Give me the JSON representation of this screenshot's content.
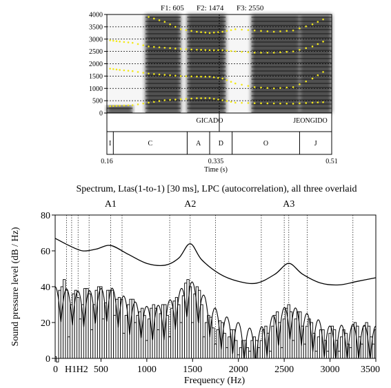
{
  "chart_data": [
    {
      "type": "spectrogram",
      "formant_labels": [
        "F1: 605",
        "F2: 1474",
        "F3: 2550"
      ],
      "y_ticks": [
        "0",
        "500",
        "1000",
        "1500",
        "2000",
        "2500",
        "3000",
        "3500",
        "4000"
      ],
      "ylim": [
        0,
        4000
      ],
      "xlim": [
        0.16,
        0.51
      ],
      "cursor_time": 0.335,
      "x_tick_labels": [
        "0.16",
        "0.335",
        "0.51"
      ],
      "xlabel": "Time (s)",
      "word_tier": [
        {
          "label": "GICADO",
          "start": 0.16,
          "end": 0.335
        },
        {
          "label": "JEONGIDO",
          "start": 0.335,
          "end": 0.51
        }
      ],
      "segment_tier": [
        {
          "label": "I",
          "start": 0.16,
          "end": 0.17
        },
        {
          "label": "C",
          "start": 0.17,
          "end": 0.285
        },
        {
          "label": "A",
          "start": 0.285,
          "end": 0.32
        },
        {
          "label": "D",
          "start": 0.32,
          "end": 0.355
        },
        {
          "label": "O",
          "start": 0.355,
          "end": 0.46
        },
        {
          "label": "J",
          "start": 0.46,
          "end": 0.51
        }
      ],
      "dark_bands": [
        {
          "start": 0.16,
          "end": 0.2,
          "lo": 0,
          "hi": 300
        },
        {
          "start": 0.22,
          "end": 0.275,
          "lo": 0,
          "hi": 4000
        },
        {
          "start": 0.285,
          "end": 0.345,
          "lo": 0,
          "hi": 4000
        },
        {
          "start": 0.385,
          "end": 0.46,
          "lo": 0,
          "hi": 4000
        },
        {
          "start": 0.46,
          "end": 0.51,
          "lo": 0,
          "hi": 4000
        }
      ],
      "formant_tracks": [
        {
          "name": "F1",
          "points": [
            [
              0.165,
              280
            ],
            [
              0.18,
              300
            ],
            [
              0.2,
              320
            ],
            [
              0.225,
              420
            ],
            [
              0.25,
              520
            ],
            [
              0.275,
              560
            ],
            [
              0.3,
              600
            ],
            [
              0.32,
              605
            ],
            [
              0.34,
              520
            ],
            [
              0.36,
              420
            ],
            [
              0.39,
              400
            ],
            [
              0.42,
              390
            ],
            [
              0.45,
              380
            ],
            [
              0.48,
              420
            ],
            [
              0.505,
              450
            ]
          ]
        },
        {
          "name": "F2",
          "points": [
            [
              0.165,
              1800
            ],
            [
              0.18,
              1750
            ],
            [
              0.2,
              1700
            ],
            [
              0.225,
              1600
            ],
            [
              0.25,
              1550
            ],
            [
              0.275,
              1500
            ],
            [
              0.3,
              1480
            ],
            [
              0.32,
              1474
            ],
            [
              0.34,
              1400
            ],
            [
              0.36,
              1200
            ],
            [
              0.39,
              1050
            ],
            [
              0.42,
              1000
            ],
            [
              0.45,
              1050
            ],
            [
              0.48,
              1400
            ],
            [
              0.505,
              1800
            ]
          ]
        },
        {
          "name": "F3",
          "points": [
            [
              0.165,
              2950
            ],
            [
              0.18,
              2900
            ],
            [
              0.2,
              2850
            ],
            [
              0.225,
              2700
            ],
            [
              0.25,
              2650
            ],
            [
              0.275,
              2600
            ],
            [
              0.3,
              2570
            ],
            [
              0.32,
              2550
            ],
            [
              0.34,
              2550
            ],
            [
              0.36,
              2500
            ],
            [
              0.39,
              2450
            ],
            [
              0.42,
              2450
            ],
            [
              0.45,
              2500
            ],
            [
              0.48,
              2700
            ],
            [
              0.505,
              3000
            ]
          ]
        },
        {
          "name": "F4",
          "points": [
            [
              0.225,
              3900
            ],
            [
              0.25,
              3700
            ],
            [
              0.275,
              3400
            ],
            [
              0.3,
              3300
            ],
            [
              0.32,
              3250
            ],
            [
              0.34,
              3300
            ],
            [
              0.36,
              3400
            ],
            [
              0.39,
              3350
            ],
            [
              0.42,
              3300
            ],
            [
              0.45,
              3350
            ],
            [
              0.48,
              3600
            ],
            [
              0.505,
              3900
            ]
          ]
        }
      ]
    },
    {
      "type": "line",
      "title": "Spectrum, Ltas(1-to-1) [30 ms], LPC (autocorrelation), all three overlaid",
      "xlabel": "Frequency (Hz)",
      "ylabel": "Sound pressure level (dB / Hz)",
      "xlim": [
        0,
        3500
      ],
      "ylim": [
        0,
        80
      ],
      "x_ticks": [
        0,
        500,
        1000,
        1500,
        2000,
        2500,
        3000,
        3500
      ],
      "x_tick_labels": [
        "0",
        "500",
        "1000",
        "1500",
        "2000",
        "2500",
        "3000",
        "3500"
      ],
      "y_ticks": [
        0,
        20,
        40,
        60,
        80
      ],
      "y_tick_labels": [
        "0",
        "20",
        "40",
        "60",
        "80"
      ],
      "harmonic_labels": [
        {
          "label": "H1",
          "freq": 125
        },
        {
          "label": "H2",
          "freq": 250
        }
      ],
      "peak_labels": [
        {
          "label": "A1",
          "freq": 605
        },
        {
          "label": "A2",
          "freq": 1474
        },
        {
          "label": "A3",
          "freq": 2550
        }
      ],
      "dotted_lines_hz": [
        125,
        180,
        250,
        370,
        605,
        730,
        1250,
        1474,
        1750,
        2250,
        2500,
        2550,
        2750,
        3250
      ],
      "harmonic_f0": 125,
      "harmonic_envelope": [
        [
          0,
          40
        ],
        [
          300,
          37
        ],
        [
          600,
          40
        ],
        [
          800,
          33
        ],
        [
          1000,
          29
        ],
        [
          1200,
          30
        ],
        [
          1474,
          44
        ],
        [
          1800,
          25
        ],
        [
          2000,
          20
        ],
        [
          2200,
          15
        ],
        [
          2400,
          25
        ],
        [
          2550,
          30
        ],
        [
          2750,
          25
        ],
        [
          3000,
          18
        ],
        [
          3250,
          19
        ],
        [
          3500,
          18
        ]
      ],
      "lpc_curve": [
        [
          0,
          67
        ],
        [
          150,
          63
        ],
        [
          300,
          60
        ],
        [
          450,
          61
        ],
        [
          605,
          63
        ],
        [
          800,
          58
        ],
        [
          1000,
          53
        ],
        [
          1200,
          52
        ],
        [
          1350,
          56
        ],
        [
          1474,
          64
        ],
        [
          1600,
          55
        ],
        [
          1800,
          47
        ],
        [
          2000,
          43
        ],
        [
          2200,
          42
        ],
        [
          2400,
          47
        ],
        [
          2550,
          53
        ],
        [
          2700,
          47
        ],
        [
          2900,
          42
        ],
        [
          3100,
          41
        ],
        [
          3300,
          43
        ],
        [
          3500,
          45
        ]
      ],
      "ltas_steps": [
        [
          0,
          1
        ],
        [
          12,
          -2
        ],
        [
          37,
          38
        ],
        [
          62,
          40
        ],
        [
          87,
          44
        ],
        [
          112,
          38
        ],
        [
          137,
          12
        ],
        [
          162,
          30
        ],
        [
          187,
          36
        ],
        [
          212,
          38
        ],
        [
          237,
          34
        ],
        [
          262,
          22
        ],
        [
          287,
          30
        ],
        [
          312,
          39
        ],
        [
          337,
          39
        ],
        [
          362,
          36
        ],
        [
          387,
          16
        ],
        [
          412,
          30
        ],
        [
          437,
          38
        ],
        [
          462,
          40
        ],
        [
          487,
          40
        ],
        [
          512,
          22
        ],
        [
          537,
          31
        ],
        [
          562,
          38
        ],
        [
          587,
          38
        ],
        [
          612,
          38
        ],
        [
          637,
          24
        ],
        [
          662,
          33
        ],
        [
          687,
          34
        ],
        [
          712,
          33
        ],
        [
          737,
          14
        ],
        [
          762,
          24
        ],
        [
          787,
          30
        ],
        [
          812,
          33
        ],
        [
          837,
          33
        ],
        [
          862,
          20
        ],
        [
          887,
          24
        ],
        [
          912,
          26
        ],
        [
          937,
          28
        ],
        [
          962,
          24
        ],
        [
          987,
          10
        ],
        [
          1012,
          22
        ],
        [
          1037,
          28
        ],
        [
          1062,
          30
        ],
        [
          1087,
          28
        ],
        [
          1112,
          16
        ],
        [
          1137,
          25
        ],
        [
          1162,
          30
        ],
        [
          1187,
          30
        ],
        [
          1212,
          24
        ],
        [
          1237,
          12
        ],
        [
          1262,
          28
        ],
        [
          1287,
          32
        ],
        [
          1312,
          34
        ],
        [
          1337,
          30
        ],
        [
          1362,
          20
        ],
        [
          1387,
          35
        ],
        [
          1412,
          42
        ],
        [
          1437,
          44
        ],
        [
          1462,
          40
        ],
        [
          1487,
          20
        ],
        [
          1512,
          36
        ],
        [
          1537,
          40
        ],
        [
          1562,
          38
        ],
        [
          1587,
          30
        ],
        [
          1612,
          12
        ],
        [
          1637,
          20
        ],
        [
          1662,
          24
        ],
        [
          1687,
          23
        ],
        [
          1712,
          17
        ],
        [
          1737,
          8
        ],
        [
          1762,
          16
        ],
        [
          1787,
          21
        ],
        [
          1812,
          20
        ],
        [
          1837,
          14
        ],
        [
          1862,
          6
        ],
        [
          1887,
          12
        ],
        [
          1912,
          16
        ],
        [
          1937,
          16
        ],
        [
          1962,
          10
        ],
        [
          1987,
          2
        ],
        [
          2012,
          6
        ],
        [
          2037,
          10
        ],
        [
          2062,
          10
        ],
        [
          2087,
          6
        ],
        [
          2112,
          4
        ],
        [
          2137,
          10
        ],
        [
          2162,
          12
        ],
        [
          2187,
          10
        ],
        [
          2212,
          6
        ],
        [
          2237,
          10
        ],
        [
          2262,
          16
        ],
        [
          2287,
          18
        ],
        [
          2312,
          14
        ],
        [
          2337,
          4
        ],
        [
          2362,
          18
        ],
        [
          2387,
          24
        ],
        [
          2412,
          26
        ],
        [
          2437,
          20
        ],
        [
          2462,
          6
        ],
        [
          2487,
          22
        ],
        [
          2512,
          28
        ],
        [
          2537,
          30
        ],
        [
          2562,
          26
        ],
        [
          2587,
          10
        ],
        [
          2612,
          22
        ],
        [
          2637,
          26
        ],
        [
          2662,
          26
        ],
        [
          2687,
          18
        ],
        [
          2712,
          8
        ],
        [
          2737,
          18
        ],
        [
          2762,
          22
        ],
        [
          2787,
          20
        ],
        [
          2812,
          14
        ],
        [
          2837,
          4
        ],
        [
          2862,
          12
        ],
        [
          2887,
          16
        ],
        [
          2912,
          16
        ],
        [
          2937,
          10
        ],
        [
          2962,
          4
        ],
        [
          2987,
          14
        ],
        [
          3012,
          18
        ],
        [
          3037,
          16
        ],
        [
          3062,
          10
        ],
        [
          3087,
          4
        ],
        [
          3112,
          12
        ],
        [
          3137,
          16
        ],
        [
          3162,
          14
        ],
        [
          3187,
          8
        ],
        [
          3212,
          6
        ],
        [
          3237,
          18
        ],
        [
          3262,
          20
        ],
        [
          3287,
          18
        ],
        [
          3312,
          12
        ],
        [
          3337,
          8
        ],
        [
          3362,
          18
        ],
        [
          3387,
          20
        ],
        [
          3412,
          18
        ],
        [
          3437,
          12
        ],
        [
          3462,
          8
        ],
        [
          3487,
          16
        ],
        [
          3500,
          18
        ]
      ]
    }
  ]
}
